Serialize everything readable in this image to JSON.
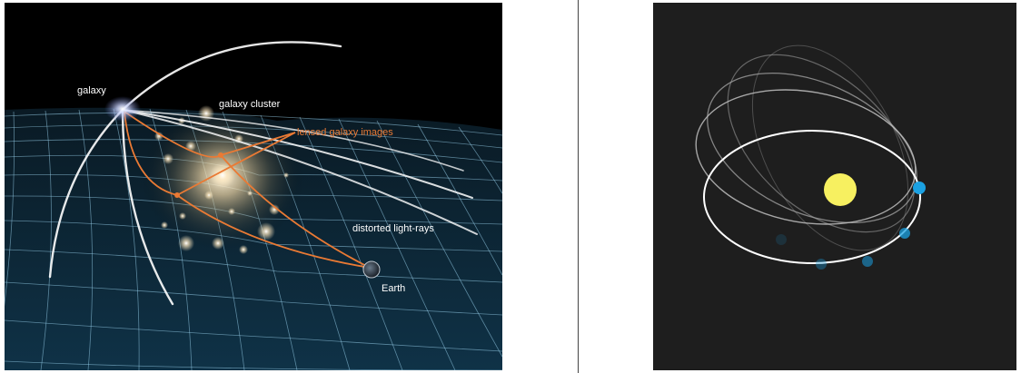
{
  "left_panel": {
    "labels": {
      "galaxy": "galaxy",
      "galaxy_cluster": "galaxy cluster",
      "lensed_images": "lensed galaxy images",
      "distorted_rays": "distorted light-rays",
      "earth": "Earth"
    },
    "colors": {
      "background": "#000000",
      "grid": "#9bd4ee",
      "light_ray": "#ffffff",
      "lensed_path": "#ea7a34",
      "label_text": "#ffffff",
      "label_accent": "#ea7a34"
    }
  },
  "right_panel": {
    "colors": {
      "background": "#1e1e1e",
      "sun": "#f7f060",
      "planet": "#1ba1e2",
      "orbit_current": "#ffffff",
      "orbit_trail": "#8a8a8a"
    }
  }
}
